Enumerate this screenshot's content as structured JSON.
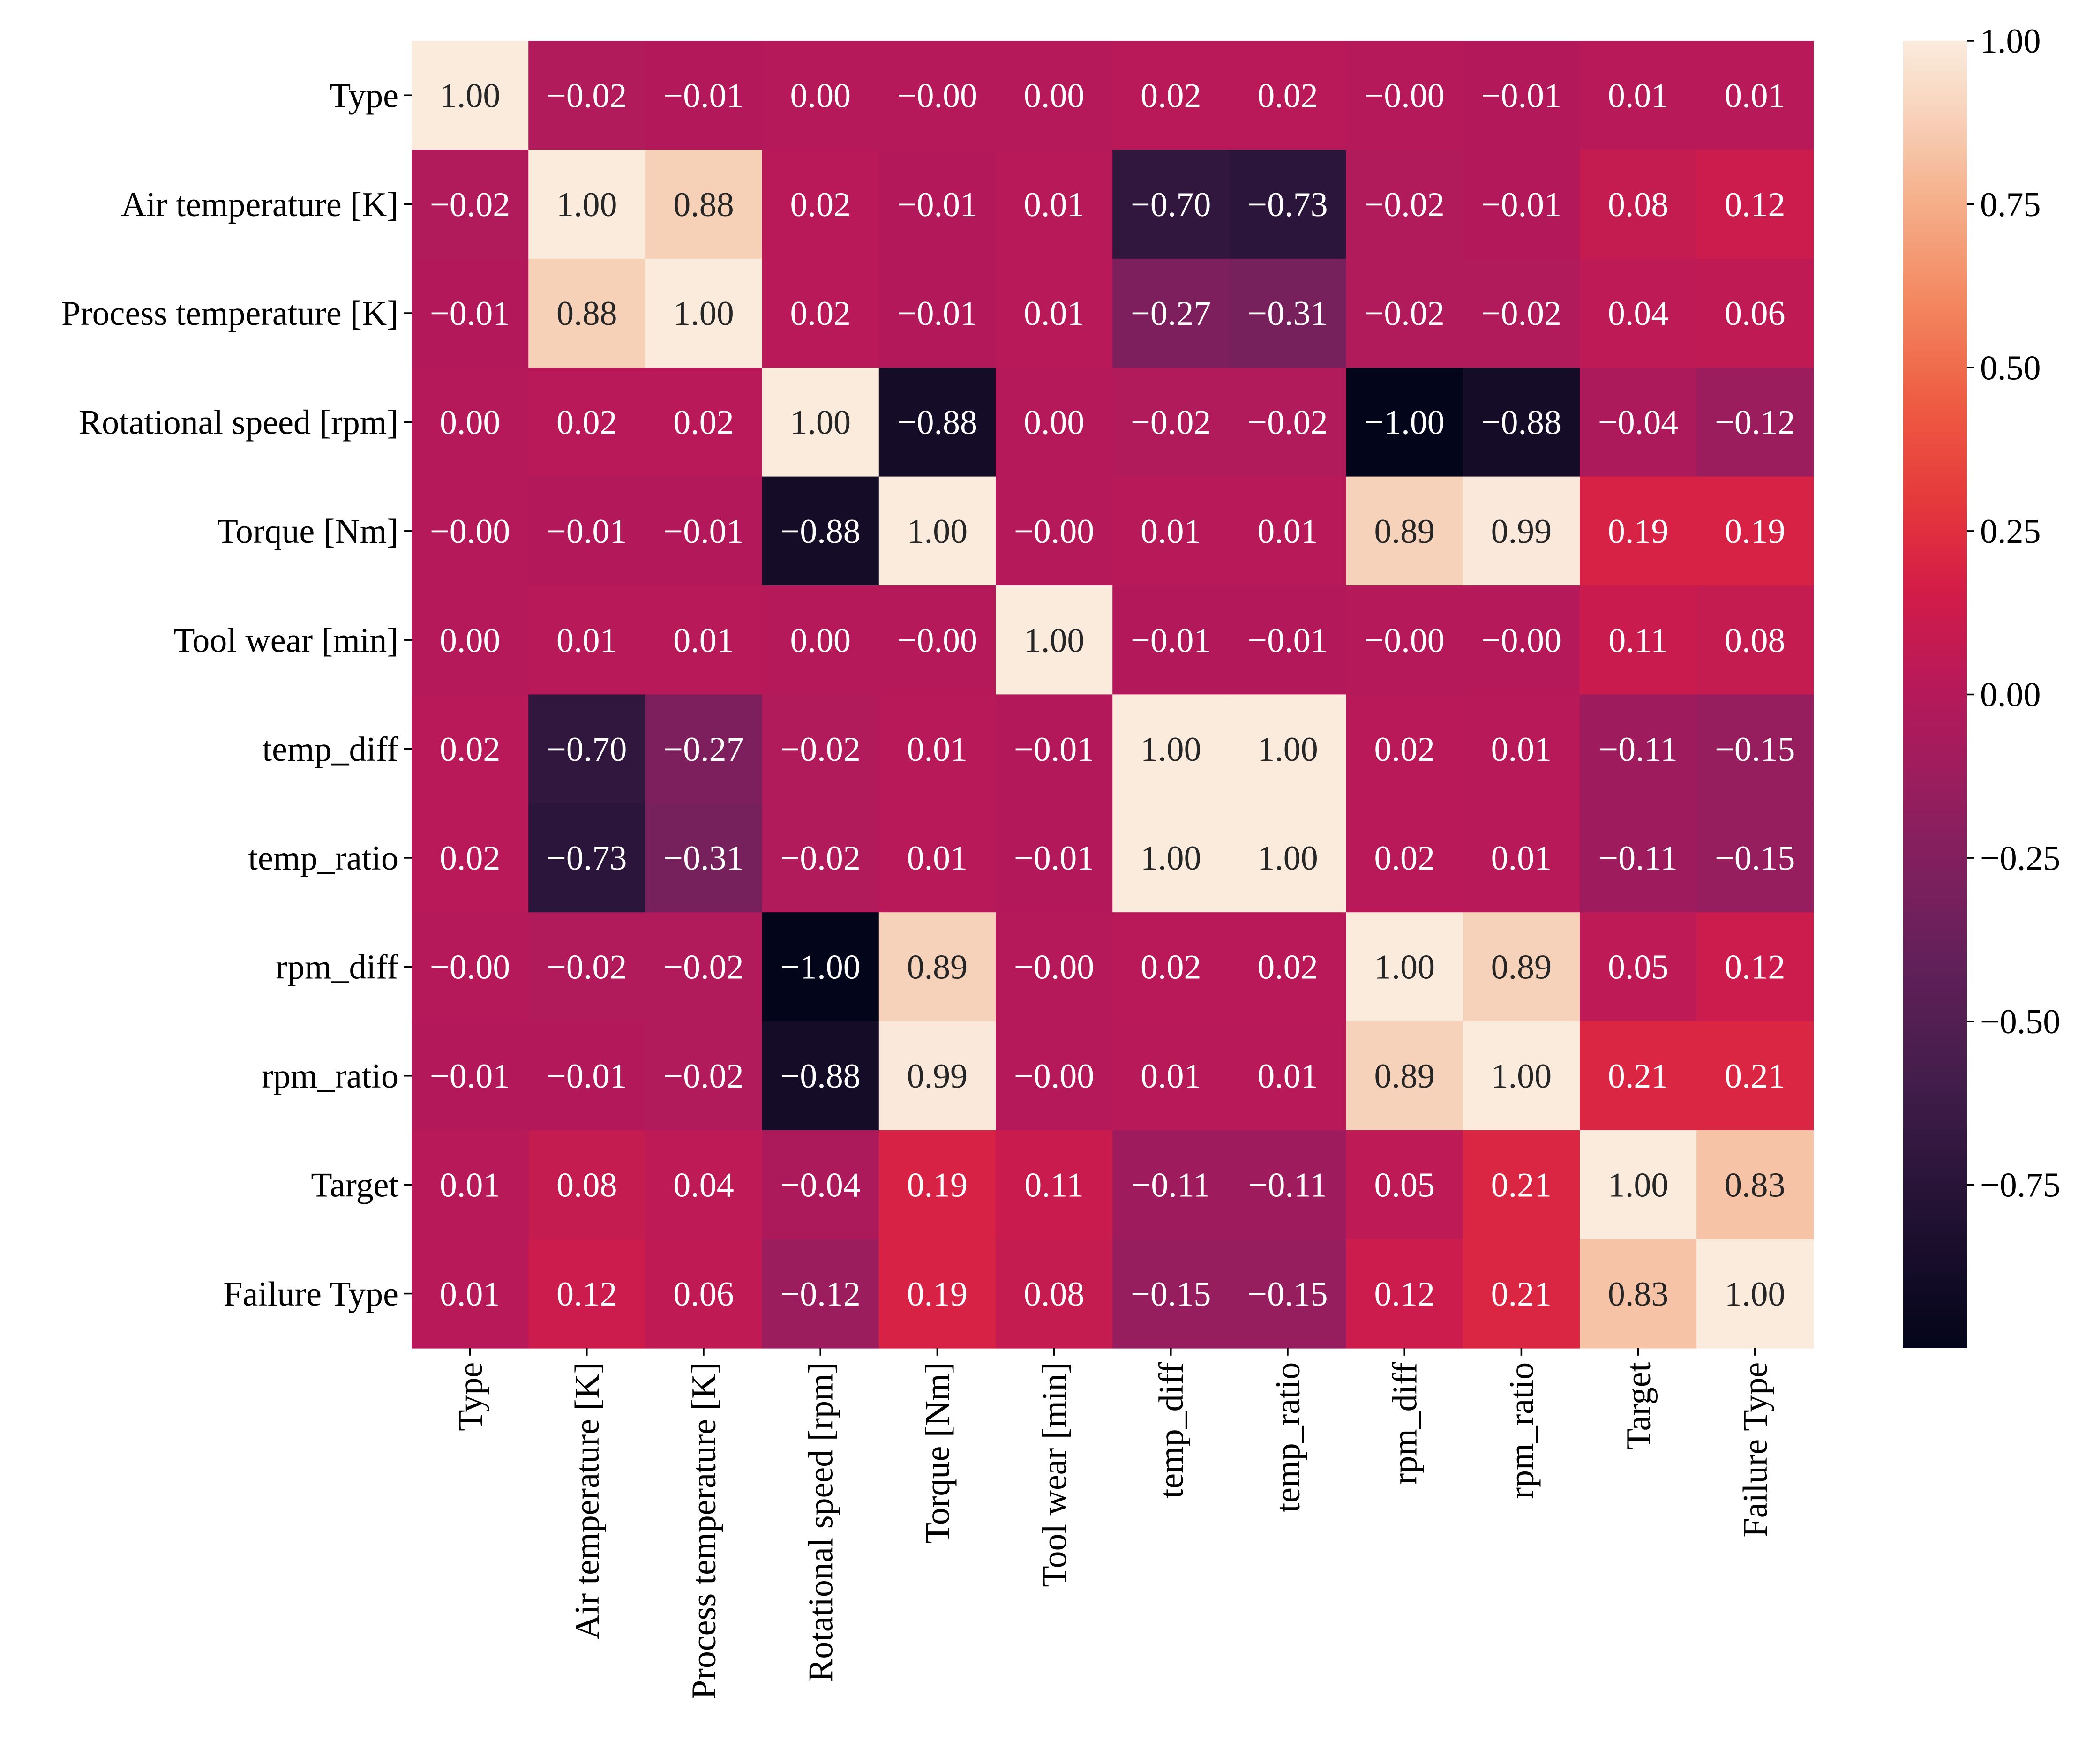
{
  "chart_data": {
    "type": "heatmap",
    "title": "",
    "xlabel": "",
    "ylabel": "",
    "labels": [
      "Type",
      "Air temperature [K]",
      "Process temperature [K]",
      "Rotational speed [rpm]",
      "Torque [Nm]",
      "Tool wear [min]",
      "temp_diff",
      "temp_ratio",
      "rpm_diff",
      "rpm_ratio",
      "Target",
      "Failure Type"
    ],
    "value_labels": [
      [
        "1.00",
        "−0.02",
        "−0.01",
        "0.00",
        "−0.00",
        "0.00",
        "0.02",
        "0.02",
        "−0.00",
        "−0.01",
        "0.01",
        "0.01"
      ],
      [
        "−0.02",
        "1.00",
        "0.88",
        "0.02",
        "−0.01",
        "0.01",
        "−0.70",
        "−0.73",
        "−0.02",
        "−0.01",
        "0.08",
        "0.12"
      ],
      [
        "−0.01",
        "0.88",
        "1.00",
        "0.02",
        "−0.01",
        "0.01",
        "−0.27",
        "−0.31",
        "−0.02",
        "−0.02",
        "0.04",
        "0.06"
      ],
      [
        "0.00",
        "0.02",
        "0.02",
        "1.00",
        "−0.88",
        "0.00",
        "−0.02",
        "−0.02",
        "−1.00",
        "−0.88",
        "−0.04",
        "−0.12"
      ],
      [
        "−0.00",
        "−0.01",
        "−0.01",
        "−0.88",
        "1.00",
        "−0.00",
        "0.01",
        "0.01",
        "0.89",
        "0.99",
        "0.19",
        "0.19"
      ],
      [
        "0.00",
        "0.01",
        "0.01",
        "0.00",
        "−0.00",
        "1.00",
        "−0.01",
        "−0.01",
        "−0.00",
        "−0.00",
        "0.11",
        "0.08"
      ],
      [
        "0.02",
        "−0.70",
        "−0.27",
        "−0.02",
        "0.01",
        "−0.01",
        "1.00",
        "1.00",
        "0.02",
        "0.01",
        "−0.11",
        "−0.15"
      ],
      [
        "0.02",
        "−0.73",
        "−0.31",
        "−0.02",
        "0.01",
        "−0.01",
        "1.00",
        "1.00",
        "0.02",
        "0.01",
        "−0.11",
        "−0.15"
      ],
      [
        "−0.00",
        "−0.02",
        "−0.02",
        "−1.00",
        "0.89",
        "−0.00",
        "0.02",
        "0.02",
        "1.00",
        "0.89",
        "0.05",
        "0.12"
      ],
      [
        "−0.01",
        "−0.01",
        "−0.02",
        "−0.88",
        "0.99",
        "−0.00",
        "0.01",
        "0.01",
        "0.89",
        "1.00",
        "0.21",
        "0.21"
      ],
      [
        "0.01",
        "0.08",
        "0.04",
        "−0.04",
        "0.19",
        "0.11",
        "−0.11",
        "−0.11",
        "0.05",
        "0.21",
        "1.00",
        "0.83"
      ],
      [
        "0.01",
        "0.12",
        "0.06",
        "−0.12",
        "0.19",
        "0.08",
        "−0.15",
        "−0.15",
        "0.12",
        "0.21",
        "0.83",
        "1.00"
      ]
    ],
    "colorbar": {
      "range": [
        -1.0,
        1.0
      ],
      "colormap": "rocket",
      "ticks": [
        1.0,
        0.75,
        0.5,
        0.25,
        0.0,
        -0.25,
        -0.5,
        -0.75
      ],
      "tick_labels": [
        "1.00",
        "0.75",
        "0.50",
        "0.25",
        "0.00",
        "−0.25",
        "−0.50",
        "−0.75"
      ]
    }
  }
}
